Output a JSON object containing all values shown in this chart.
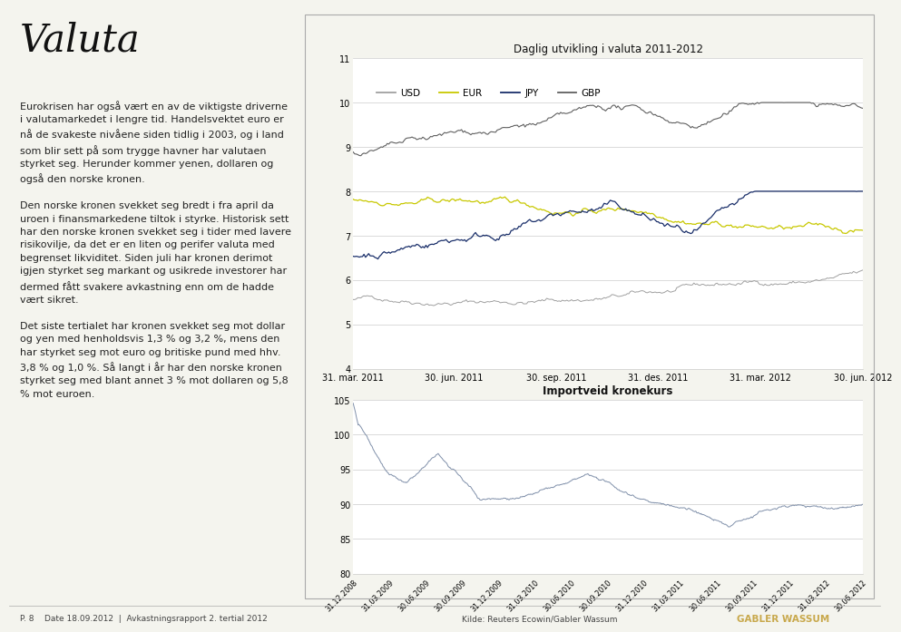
{
  "chart1_title": "Daglig utvikling i valuta 2011-2012",
  "chart2_title": "Importveid kronekurs",
  "chart1_ylim": [
    4,
    11
  ],
  "chart1_yticks": [
    4,
    5,
    6,
    7,
    8,
    9,
    10,
    11
  ],
  "chart2_ylim": [
    80,
    105
  ],
  "chart2_yticks": [
    80,
    85,
    90,
    95,
    100,
    105
  ],
  "line_color_usd": "#a0a0a0",
  "line_color_eur": "#c8c800",
  "line_color_jpy": "#1a2f6a",
  "line_color_gbp": "#606060",
  "line_color_import": "#8090aa",
  "background_color": "#f4f4ee",
  "panel_bg": "#ffffff",
  "border_color": "#aaaaaa",
  "title_fontsize": 8.5,
  "tick_fontsize": 7,
  "legend_fontsize": 7.5,
  "text_color": "#222222",
  "chart1_xticklabels": [
    "31. mar. 2011",
    "30. jun. 2011",
    "30. sep. 2011",
    "31. des. 2011",
    "31. mar. 2012",
    "30. jun. 2012"
  ],
  "chart2_xticklabels": [
    "31.12.2008",
    "31.03.2009",
    "30.06.2009",
    "30.09.2009",
    "31.12.2009",
    "31.03.2010",
    "30.06.2010",
    "30.09.2010",
    "31.12.2010",
    "31.03.2011",
    "30.06.2011",
    "30.09.2011",
    "31.12.2011",
    "31.03.2012",
    "30.06.2012"
  ],
  "footer_left": "P. 8    Date 18.09.2012  |  Avkastningsrapport 2. tertial 2012",
  "footer_mid": "Kilde: Reuters Ecowin/Gabler Wassum",
  "footer_logo": "GABLER WASSUM",
  "title_text": "Valuta",
  "body_text": "Eurokrisen har også vært en av de viktigste driverne\ni valutamarkedet i lengre tid. Handelsvektet euro er\nnå de svakeste nivåene siden tidlig i 2003, og i land\nsom blir sett på som trygge havner har valutaen\nstyrket seg. Herunder kommer yenen, dollaren og\nogså den norske kronen.\n\nDen norske kronen svekket seg bredt i fra april da\nuroen i finansmarkedene tiltok i styrke. Historisk sett\nhar den norske kronen svekket seg i tider med lavere\nrisikovilje, da det er en liten og perifer valuta med\nbegrenset likviditet. Siden juli har kronen derimot\nigjen styrket seg markant og usikrede investorer har\ndermed fått svakere avkastning enn om de hadde\nvært sikret.\n\nDet siste tertialet har kronen svekket seg mot dollar\nog yen med henholdsvis 1,3 % og 3,2 %, mens den\nhar styrket seg mot euro og britiske pund med hhv.\n3,8 % og 1,0 %. Så langt i år har den norske kronen\nstyrket seg med blant annet 3 % mot dollaren og 5,8\n% mot euroen."
}
